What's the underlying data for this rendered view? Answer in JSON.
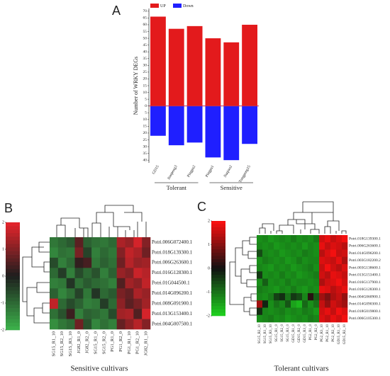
{
  "chart_data": [
    {
      "type": "bar",
      "panel": "A",
      "ylabel": "Number of WRKY DEGs",
      "categories": [
        "GD15",
        "Jianpeng3",
        "Pingpu2",
        "Pingpu1",
        "Jiuqiao2",
        "Tongpeng15"
      ],
      "groups": [
        "Tolerant",
        "Sensitive"
      ],
      "series": [
        {
          "name": "UP",
          "color": "#e31a1c",
          "values": [
            66,
            57,
            59,
            50,
            47,
            60
          ]
        },
        {
          "name": "Down",
          "color": "#1f1fff",
          "values": [
            -22,
            -29,
            -27,
            -38,
            -40,
            -28
          ]
        }
      ],
      "ylim": [
        -42,
        72
      ],
      "yticks": [
        70,
        65,
        60,
        55,
        50,
        45,
        40,
        35,
        30,
        25,
        20,
        15,
        10,
        5,
        0,
        {
          "value": -5,
          "label": "5"
        },
        {
          "value": -10,
          "label": "10"
        },
        {
          "value": -15,
          "label": "15"
        },
        {
          "value": -20,
          "label": "20"
        },
        {
          "value": -25,
          "label": "25"
        },
        {
          "value": -30,
          "label": "30"
        },
        {
          "value": -35,
          "label": "35"
        },
        {
          "value": -40,
          "label": "40"
        }
      ],
      "legend": "top"
    },
    {
      "type": "heatmap",
      "panel": "B",
      "caption": "Sensitive cultivars",
      "rows": [
        "Potri.006G072400.1",
        "Potri.018G139300.1",
        "Potri.006G263600.1",
        "Potri.016G128300.1",
        "Potri.01G044500.1",
        "Potri.014G096200.1",
        "Potri.008G091900.1",
        "Potri.013G153400.1",
        "Potri.004G007500.1"
      ],
      "columns": [
        "SG15_R1_10",
        "SG15_R2_10",
        "SG15_R3_10",
        "JG82_R1_0",
        "JG82_R2_0",
        "SG15_R1_0",
        "SG15_R2_0",
        "PG1_R1_0",
        "PG1_R2_0",
        "PG1_R1_10",
        "PG1_R2_10",
        "JG82_R1_10"
      ],
      "values": [
        [
          -1.2,
          -1.0,
          -0.8,
          0.6,
          -0.9,
          -1.1,
          -1.2,
          -1.0,
          1.4,
          1.2,
          1.8,
          1.0
        ],
        [
          -1.4,
          -1.1,
          -1.2,
          0.9,
          -0.5,
          -1.3,
          -1.0,
          -1.2,
          1.0,
          1.6,
          1.4,
          0.8
        ],
        [
          -0.6,
          -1.3,
          -1.0,
          0.2,
          0.4,
          -1.2,
          -0.9,
          -1.1,
          0.8,
          1.5,
          1.2,
          1.3
        ],
        [
          -1.0,
          -0.4,
          -1.3,
          -0.6,
          -1.0,
          -0.7,
          -1.3,
          -0.9,
          1.2,
          1.0,
          1.7,
          1.5
        ],
        [
          -1.3,
          -1.2,
          -0.3,
          -1.1,
          -0.8,
          -1.0,
          -1.1,
          -1.3,
          0.5,
          1.3,
          1.1,
          1.6
        ],
        [
          -0.9,
          -1.4,
          -1.1,
          -0.5,
          -1.2,
          -0.3,
          -1.0,
          -0.8,
          0.9,
          0.7,
          1.4,
          1.2
        ],
        [
          1.6,
          -1.0,
          -0.6,
          -0.9,
          -1.3,
          -1.2,
          -0.4,
          -1.0,
          1.1,
          0.6,
          0.9,
          1.3
        ],
        [
          -1.1,
          -0.7,
          0.3,
          -1.3,
          -0.9,
          -1.0,
          -1.2,
          -0.6,
          1.3,
          1.4,
          0.5,
          1.8
        ],
        [
          -1.5,
          -1.2,
          -1.0,
          0.8,
          -0.7,
          -1.4,
          -1.1,
          -1.3,
          0.7,
          1.1,
          1.5,
          1.0
        ]
      ],
      "zlim": [
        -2,
        2
      ],
      "zticks": [
        2,
        1,
        0,
        -1,
        -2
      ],
      "colors": [
        "#3cb34a",
        "#1e1e1e",
        "#e8242b"
      ]
    },
    {
      "type": "heatmap",
      "panel": "C",
      "caption": "Tolerant cultivars",
      "rows": [
        "Potri.018G139300.1",
        "Potri.006G263600.1",
        "Potri.014G096200.1",
        "Potri.003G182200.2",
        "Potri.003G138600.1",
        "Potri.013G153400.1",
        "Potri.016G137900.1",
        "Potri.016G128300.1",
        "Potri.004G060900.1",
        "Potri.014G090300.1",
        "Potri.018G019800.1",
        "Potri.006G105300.1"
      ],
      "columns": [
        "SG15_R2_10",
        "SG15_R1_10",
        "SG15_R3_10",
        "SG15_R1_0",
        "SG15_R2_0",
        "SG15_R3_0",
        "GD15_R1_0",
        "GD15_R2_0",
        "GD15_R3_0",
        "PG2_R1_0",
        "PG2_R2_0",
        "PG2_R3_10",
        "PG2_R1_10",
        "PG2_R2_10",
        "GD15_R1_10",
        "GD15_R2_10"
      ],
      "values": [
        [
          -1.3,
          -1.2,
          -1.4,
          -1.3,
          -1.2,
          -1.3,
          -1.1,
          -1.3,
          -1.2,
          -1.3,
          -1.1,
          1.6,
          1.8,
          1.5,
          1.7,
          1.9
        ],
        [
          -1.2,
          -1.3,
          -1.2,
          -1.4,
          -1.3,
          -1.2,
          -1.3,
          -1.2,
          -1.4,
          -1.2,
          -1.3,
          1.8,
          1.5,
          1.7,
          1.6,
          1.4
        ],
        [
          -0.6,
          -1.2,
          -1.3,
          -1.2,
          -1.4,
          -1.3,
          -1.2,
          -1.3,
          -1.1,
          -1.2,
          -1.3,
          1.4,
          1.7,
          1.9,
          1.5,
          1.6
        ],
        [
          -1.3,
          -1.1,
          -1.2,
          -1.3,
          -1.2,
          -1.4,
          -1.3,
          -1.1,
          -1.3,
          -1.2,
          -1.2,
          1.7,
          1.6,
          1.5,
          1.8,
          1.3
        ],
        [
          -1.2,
          -1.3,
          -1.4,
          -1.2,
          -1.3,
          -1.2,
          -1.4,
          -1.3,
          -1.2,
          -1.1,
          -1.3,
          1.5,
          1.9,
          1.6,
          1.4,
          1.7
        ],
        [
          -0.4,
          -1.3,
          -1.2,
          -1.3,
          -1.1,
          -1.3,
          -1.2,
          -1.4,
          -1.3,
          -1.2,
          -1.1,
          1.6,
          1.4,
          1.8,
          1.7,
          1.5
        ],
        [
          -1.3,
          -0.8,
          -1.3,
          -1.2,
          -1.3,
          -1.1,
          -1.3,
          -1.2,
          -1.2,
          -1.3,
          -1.2,
          1.3,
          1.6,
          1.7,
          1.9,
          1.6
        ],
        [
          -1.1,
          -1.2,
          -1.3,
          -1.4,
          -1.2,
          -1.3,
          -1.1,
          -1.3,
          -1.4,
          -1.2,
          -1.3,
          1.8,
          1.7,
          1.4,
          1.6,
          1.8
        ],
        [
          -1.2,
          -1.3,
          -1.1,
          -0.5,
          -0.3,
          -1.0,
          -0.4,
          -0.6,
          -1.2,
          0.2,
          -0.8,
          1.2,
          0.9,
          1.3,
          1.5,
          1.1
        ],
        [
          1.2,
          -0.2,
          -1.3,
          -1.0,
          -1.2,
          -0.7,
          -1.5,
          -1.7,
          -0.9,
          -1.3,
          -1.0,
          1.5,
          1.1,
          1.6,
          1.4,
          1.2
        ],
        [
          -0.3,
          -1.2,
          -1.3,
          -1.2,
          -1.1,
          -1.3,
          -1.2,
          -1.3,
          -1.1,
          -1.2,
          -1.4,
          1.6,
          1.8,
          1.5,
          1.9,
          1.7
        ],
        [
          -1.3,
          -1.2,
          -1.1,
          -1.3,
          -1.2,
          -1.4,
          -1.3,
          -1.2,
          -1.3,
          -1.1,
          -1.2,
          1.7,
          1.5,
          1.8,
          1.6,
          1.9
        ]
      ],
      "zlim": [
        -2,
        2
      ],
      "zticks": [
        2,
        1,
        0,
        -1,
        -2
      ],
      "colors": [
        "#1ed21e",
        "#111111",
        "#ff1010"
      ]
    }
  ]
}
